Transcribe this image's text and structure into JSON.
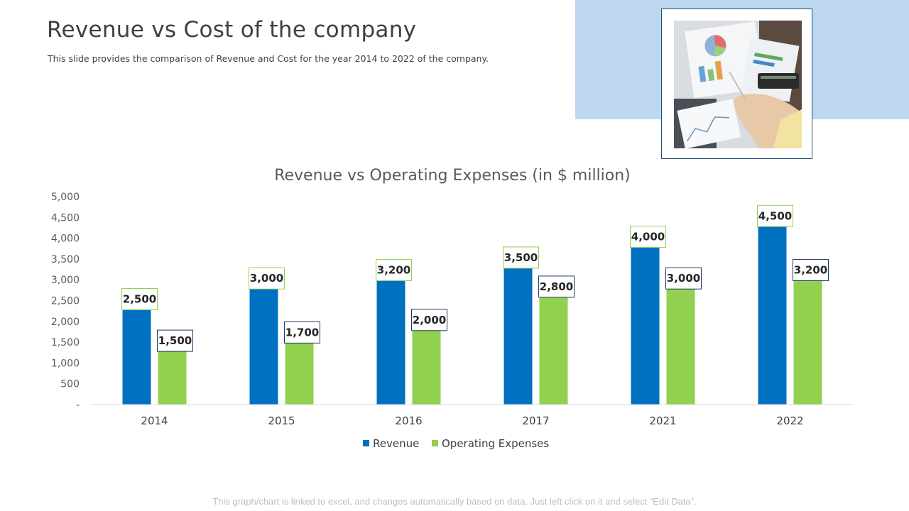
{
  "header": {
    "title": "Revenue vs Cost of the company",
    "subtitle": "This slide provides the comparison of Revenue and Cost for the year 2014 to 2022 of the company."
  },
  "footnote": "This graph/chart is linked to excel, and changes automatically based on data. Just left click on it and select “Edit Data”.",
  "colors": {
    "revenue": "#0070c0",
    "expenses": "#92d050",
    "label_border_revenue": "#92d050",
    "label_border_expenses": "#1f3864",
    "panel": "#bdd7ee",
    "frame": "#1f4e79"
  },
  "chart_data": {
    "type": "bar",
    "title": "Revenue vs Operating Expenses (in $ million)",
    "categories": [
      "2014",
      "2015",
      "2016",
      "2017",
      "2021",
      "2022"
    ],
    "series": [
      {
        "name": "Revenue",
        "values": [
          2500,
          3000,
          3200,
          3500,
          4000,
          4500
        ]
      },
      {
        "name": "Operating Expenses",
        "values": [
          1500,
          1700,
          2000,
          2800,
          3000,
          3200
        ]
      }
    ],
    "ylim": [
      0,
      5000
    ],
    "yticks": [
      0,
      500,
      1000,
      1500,
      2000,
      2500,
      3000,
      3500,
      4000,
      4500,
      5000
    ],
    "ytick_labels": [
      "-",
      "500",
      "1,000",
      "1,500",
      "2,000",
      "2,500",
      "3,000",
      "3,500",
      "4,000",
      "4,500",
      "5,000"
    ],
    "data_labels": [
      [
        "2,500",
        "3,000",
        "3,200",
        "3,500",
        "4,000",
        "4,500"
      ],
      [
        "1,500",
        "1,700",
        "2,000",
        "2,800",
        "3,000",
        "3,200"
      ]
    ],
    "legend": "bottom"
  }
}
